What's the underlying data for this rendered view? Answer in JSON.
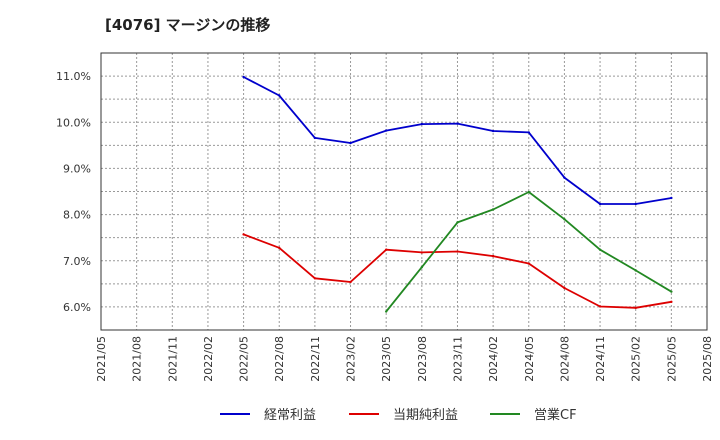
{
  "chart_data": {
    "type": "line",
    "title": "[4076]  マージンの推移",
    "x_ticks": [
      "2021/05",
      "2021/08",
      "2021/11",
      "2022/02",
      "2022/05",
      "2022/08",
      "2022/11",
      "2023/02",
      "2023/05",
      "2023/08",
      "2023/11",
      "2024/02",
      "2024/05",
      "2024/08",
      "2024/11",
      "2025/02",
      "2025/05",
      "2025/08"
    ],
    "y_ticks": [
      "6.0%",
      "7.0%",
      "8.0%",
      "9.0%",
      "10.0%",
      "11.0%"
    ],
    "y_tick_values": [
      6.0,
      7.0,
      8.0,
      9.0,
      10.0,
      11.0
    ],
    "ylim": [
      5.5,
      11.5
    ],
    "grid": true,
    "legend_position": "bottom",
    "series": [
      {
        "name": "経常利益",
        "color": "#0000cc",
        "x": [
          "2022/05",
          "2022/08",
          "2022/11",
          "2023/02",
          "2023/05",
          "2023/08",
          "2023/11",
          "2024/02",
          "2024/05",
          "2024/08",
          "2024/11",
          "2025/02",
          "2025/05"
        ],
        "values": [
          10.98,
          10.58,
          9.66,
          9.55,
          9.82,
          9.96,
          9.97,
          9.81,
          9.78,
          8.8,
          8.23,
          8.23,
          8.36
        ]
      },
      {
        "name": "当期純利益",
        "color": "#dd0000",
        "x": [
          "2022/05",
          "2022/08",
          "2022/11",
          "2023/02",
          "2023/05",
          "2023/08",
          "2023/11",
          "2024/02",
          "2024/05",
          "2024/08",
          "2024/11",
          "2025/02",
          "2025/05"
        ],
        "values": [
          7.57,
          7.28,
          6.62,
          6.54,
          7.24,
          7.18,
          7.2,
          7.1,
          6.94,
          6.41,
          6.01,
          5.98,
          6.11
        ]
      },
      {
        "name": "営業CF",
        "color": "#228822",
        "x": [
          "2023/05",
          "2023/08",
          "2023/11",
          "2024/02",
          "2024/05",
          "2024/08",
          "2024/11",
          "2025/02",
          "2025/05"
        ],
        "values": [
          5.9,
          6.86,
          7.83,
          8.11,
          8.49,
          7.9,
          7.24,
          6.79,
          6.33
        ]
      }
    ]
  }
}
